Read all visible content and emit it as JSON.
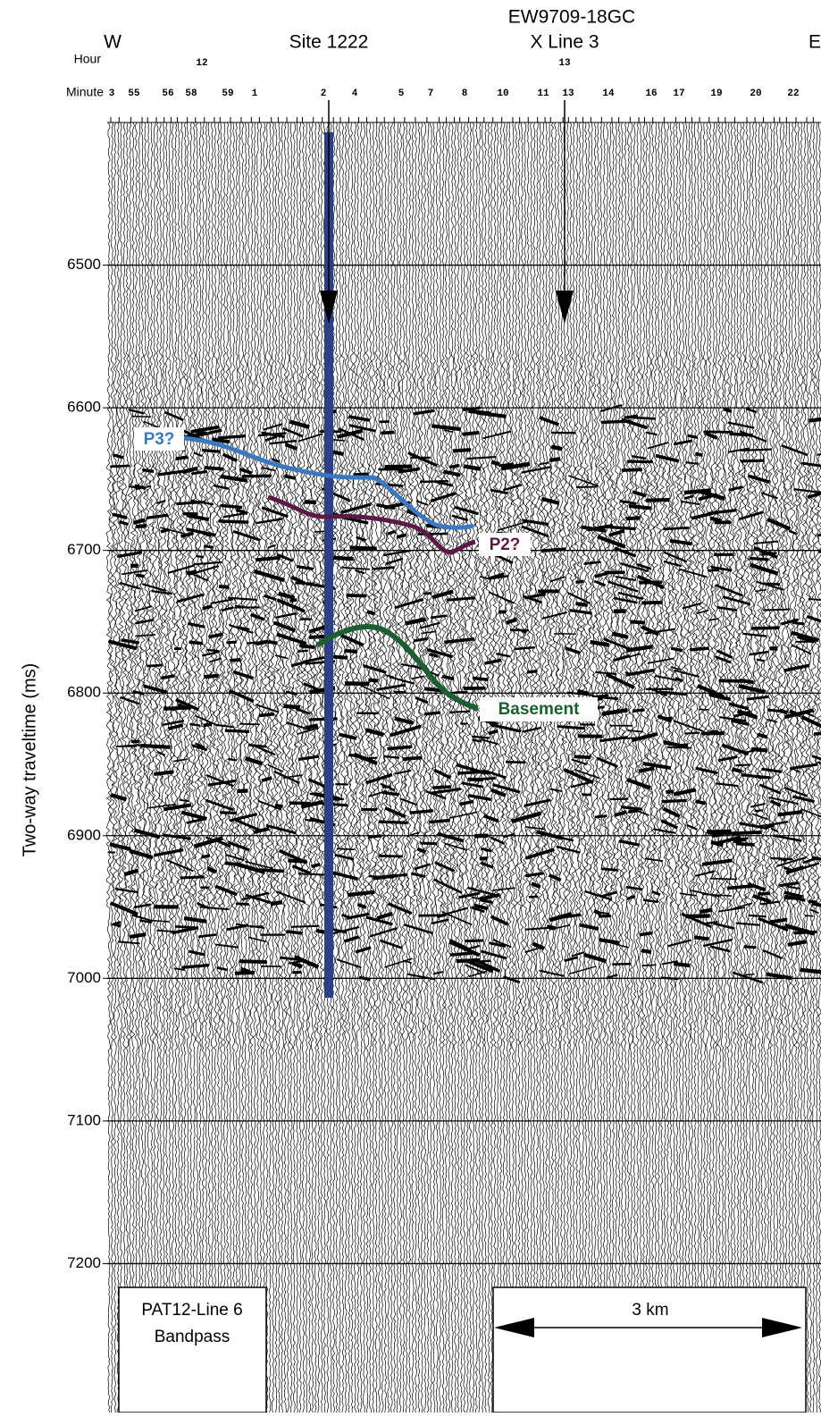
{
  "chart_data": {
    "type": "seismic",
    "title": "EW9709-18GC",
    "left_label": "W",
    "right_label": "E",
    "site_label": "Site 1222",
    "crossline_label": "X Line 3",
    "hour_label": "Hour",
    "hours": [
      "12",
      "13"
    ],
    "minute_label": "Minute",
    "minutes": [
      3,
      55,
      56,
      58,
      59,
      1,
      2,
      4,
      5,
      7,
      8,
      10,
      11,
      13,
      14,
      16,
      17,
      19,
      20,
      22
    ],
    "ylabel": "Two-way traveltime (ms)",
    "ylim": [
      6400,
      7300
    ],
    "yticks": [
      6500,
      6600,
      6700,
      6800,
      6900,
      7000,
      7100,
      7200
    ],
    "grid": true,
    "horizon_labels": [
      "P3?",
      "P2?",
      "Basement"
    ],
    "line_label": [
      "PAT12-Line 6",
      "Bandpass"
    ],
    "scale_label": "3 km"
  }
}
